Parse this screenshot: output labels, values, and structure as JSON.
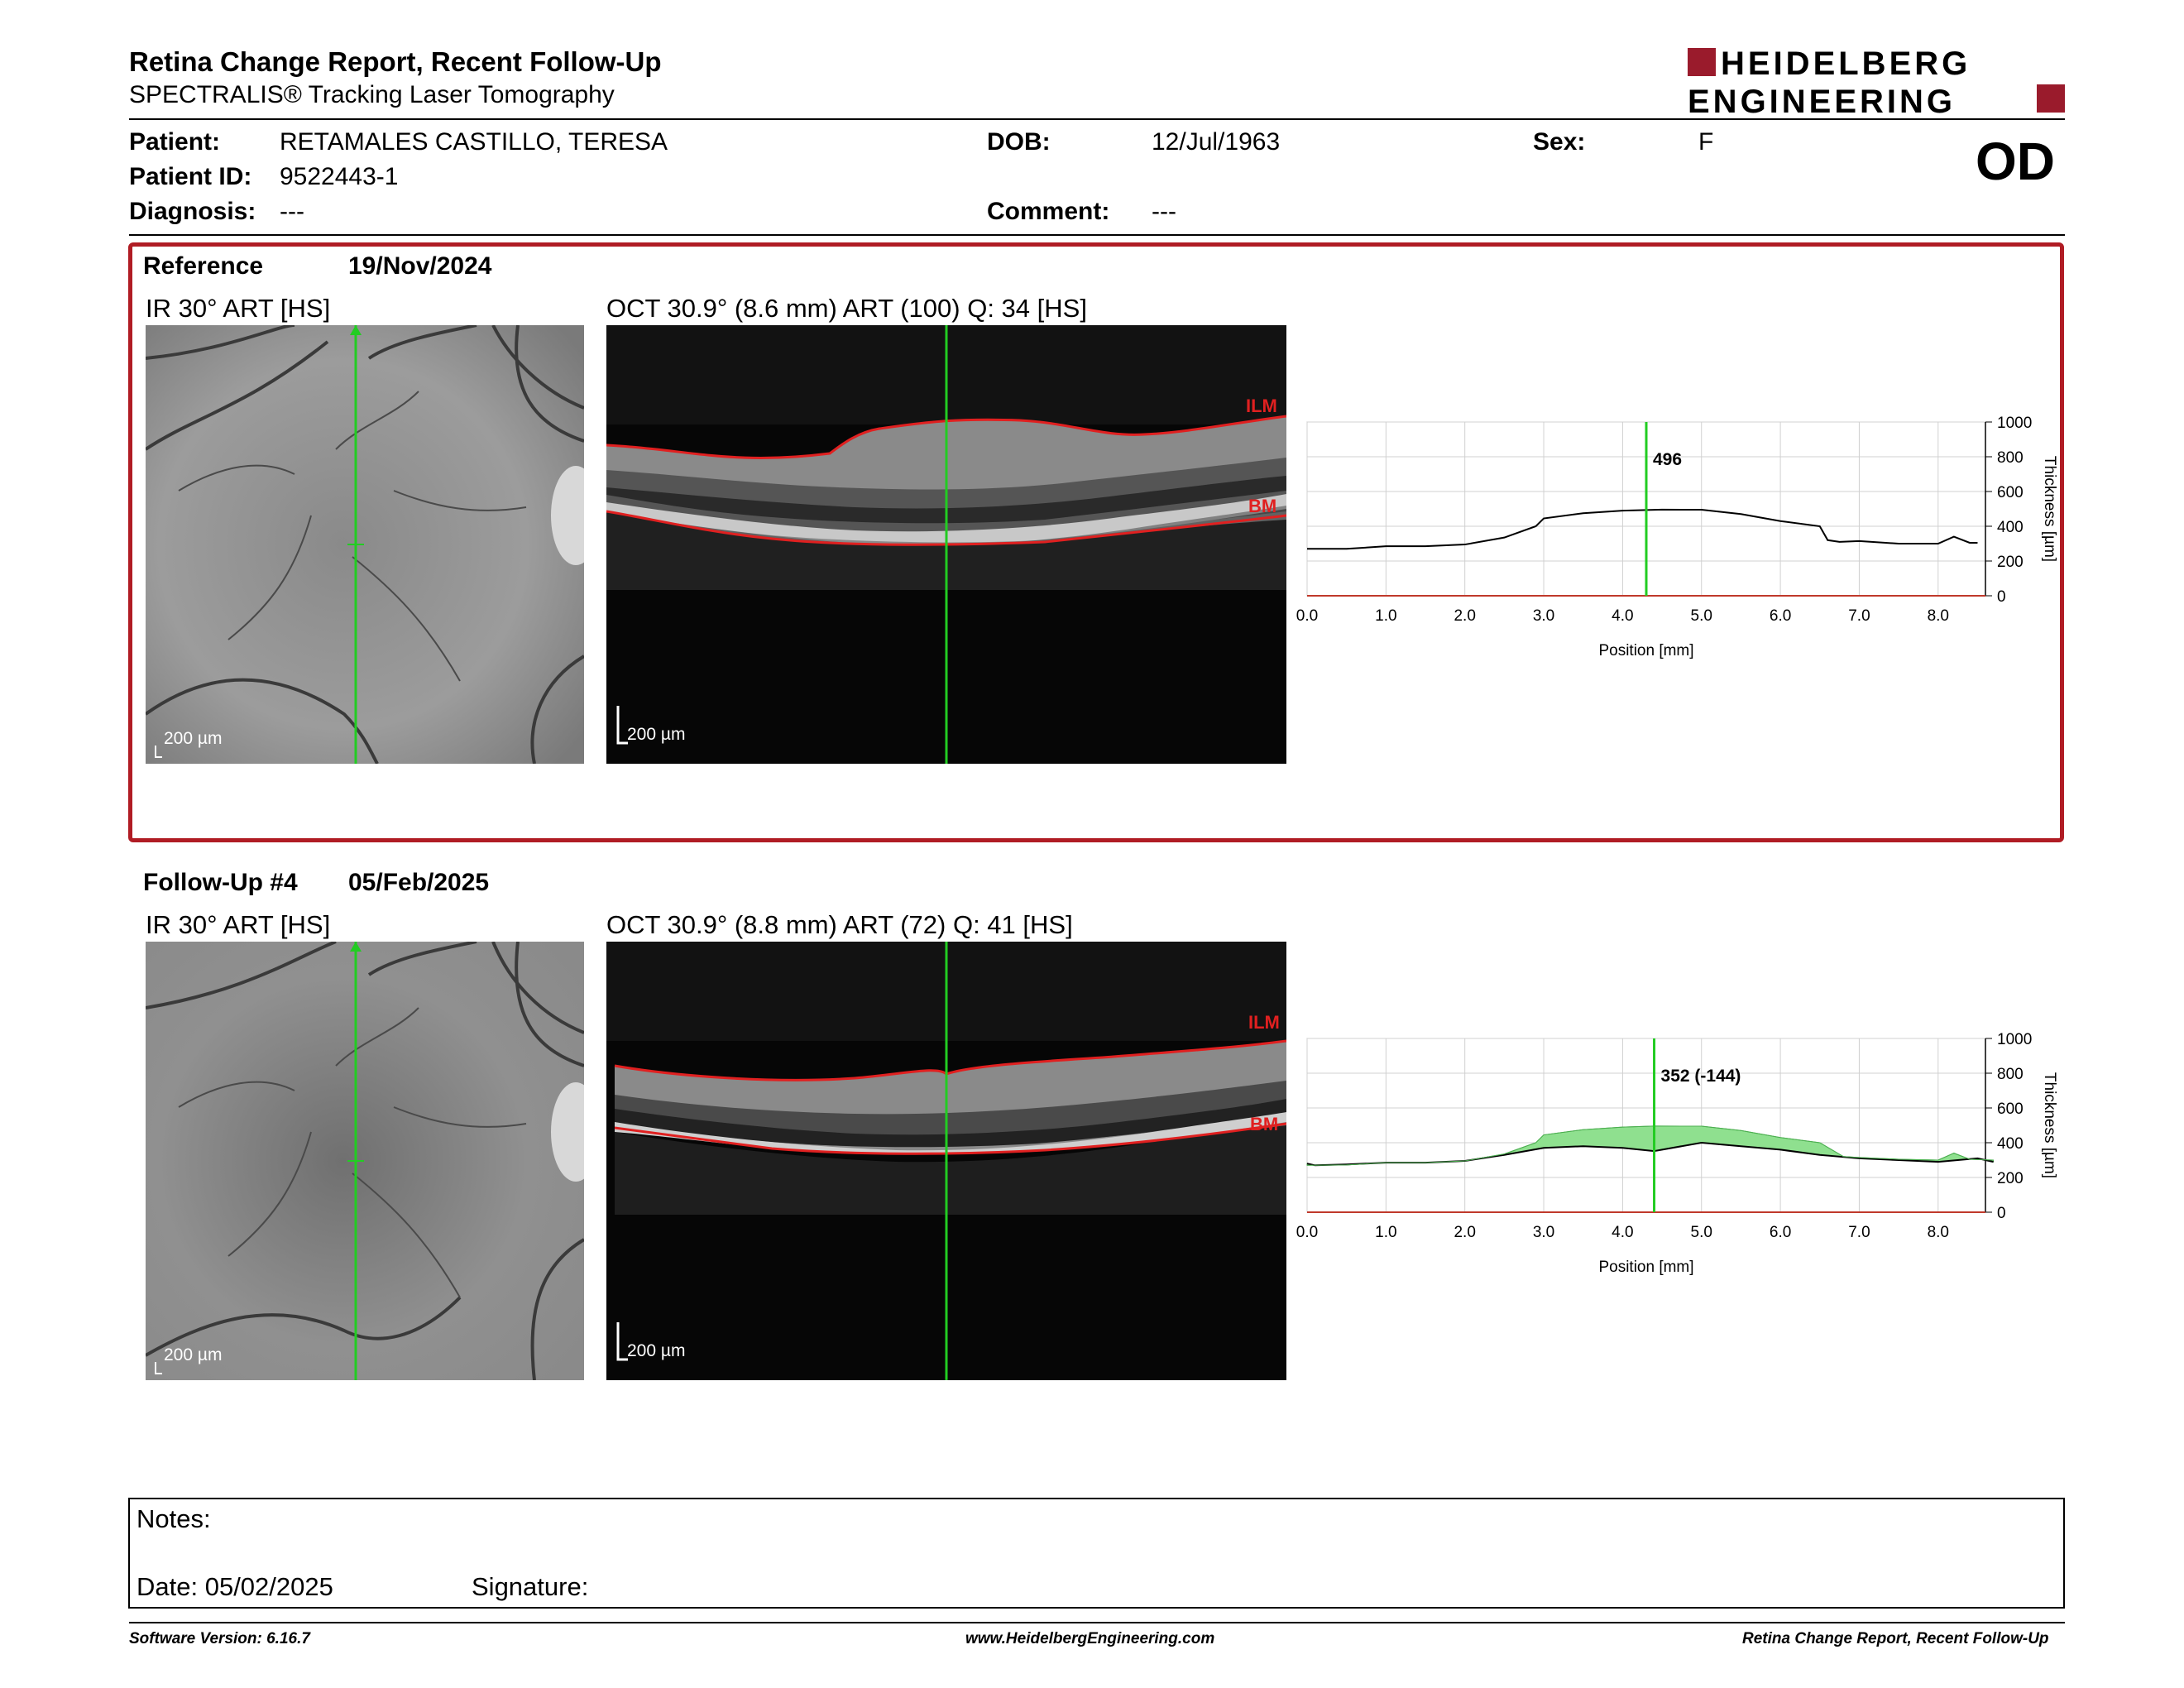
{
  "header": {
    "title": "Retina Change Report, Recent Follow-Up",
    "subtitle": "SPECTRALIS® Tracking Laser Tomography",
    "logo_line1": "HEIDELBERG",
    "logo_line2": "ENGINEERING",
    "brand_color": "#9a1b2c"
  },
  "patient": {
    "patient_label": "Patient:",
    "patient_value": "RETAMALES CASTILLO, TERESA",
    "id_label": "Patient ID:",
    "id_value": "9522443-1",
    "diagnosis_label": "Diagnosis:",
    "diagnosis_value": "---",
    "dob_label": "DOB:",
    "dob_value": "12/Jul/1963",
    "comment_label": "Comment:",
    "comment_value": "---",
    "sex_label": "Sex:",
    "sex_value": "F",
    "eye": "OD"
  },
  "reference": {
    "label": "Reference",
    "date": "19/Nov/2024",
    "ir_caption": "IR 30° ART [HS]",
    "oct_caption": "OCT 30.9° (8.6 mm) ART (100) Q: 34 [HS]",
    "ir_scale": "200 µm",
    "oct_scale": "200 µm",
    "ilm_label": "ILM",
    "bm_label": "BM",
    "panel_border_color": "#b01c24"
  },
  "followup": {
    "label": "Follow-Up #4",
    "date": "05/Feb/2025",
    "ir_caption": "IR 30° ART [HS]",
    "oct_caption": "OCT 30.9° (8.8 mm) ART (72) Q: 41 [HS]",
    "ir_scale": "200 µm",
    "oct_scale": "200 µm",
    "ilm_label": "ILM",
    "bm_label": "BM"
  },
  "chart_data": [
    {
      "type": "line",
      "x_ticks": [
        "0.0",
        "1.0",
        "2.0",
        "3.0",
        "4.0",
        "5.0",
        "6.0",
        "7.0",
        "8.0"
      ],
      "y_ticks": [
        "0",
        "200",
        "400",
        "600",
        "800",
        "1000"
      ],
      "xlabel": "Position [mm]",
      "ylabel": "Thickness [µm]",
      "xlim": [
        0,
        8.6
      ],
      "ylim": [
        0,
        1000
      ],
      "cursor_x": 4.3,
      "cursor_label": "496",
      "series": [
        {
          "x": [
            0,
            0.5,
            1.0,
            1.5,
            2.0,
            2.5,
            2.9,
            3.0,
            3.5,
            4.0,
            4.5,
            5.0,
            5.5,
            6.0,
            6.5,
            6.6,
            6.75,
            7.0,
            7.5,
            8.0,
            8.2,
            8.4,
            8.5
          ],
          "y": [
            270,
            270,
            285,
            285,
            295,
            335,
            400,
            445,
            475,
            490,
            496,
            495,
            470,
            430,
            400,
            320,
            310,
            315,
            300,
            300,
            340,
            305,
            305
          ]
        }
      ],
      "colors": {
        "line": "#000000",
        "cursor": "#22cc22",
        "baseline": "#c0392b"
      }
    },
    {
      "type": "area",
      "x_ticks": [
        "0.0",
        "1.0",
        "2.0",
        "3.0",
        "4.0",
        "5.0",
        "6.0",
        "7.0",
        "8.0"
      ],
      "y_ticks": [
        "0",
        "200",
        "400",
        "600",
        "800",
        "1000"
      ],
      "xlabel": "Position [mm]",
      "ylabel": "Thickness [µm]",
      "xlim": [
        0,
        8.8
      ],
      "ylim": [
        0,
        1000
      ],
      "cursor_x": 4.4,
      "cursor_label": "352 (-144)",
      "series": [
        {
          "x": [
            0,
            0.1,
            0.5,
            1.0,
            1.5,
            2.0,
            2.5,
            3.0,
            3.5,
            4.0,
            4.4,
            5.0,
            5.5,
            6.0,
            6.5,
            7.0,
            7.5,
            8.0,
            8.5,
            8.7
          ],
          "y": [
            280,
            270,
            275,
            285,
            285,
            295,
            330,
            370,
            380,
            370,
            352,
            400,
            380,
            360,
            330,
            310,
            300,
            290,
            310,
            290
          ]
        },
        {
          "x": [
            0,
            0.5,
            1.0,
            1.5,
            2.0,
            2.5,
            2.9,
            3.0,
            3.5,
            4.0,
            4.4,
            5.0,
            5.5,
            6.0,
            6.5,
            6.8,
            7.0,
            7.5,
            8.0,
            8.2,
            8.4,
            8.7
          ],
          "y": [
            270,
            272,
            285,
            285,
            295,
            335,
            400,
            445,
            475,
            490,
            496,
            495,
            470,
            430,
            400,
            320,
            315,
            305,
            300,
            340,
            305,
            300
          ]
        }
      ],
      "colors": {
        "line": "#000000",
        "fill": "#8fe08f",
        "cursor": "#22cc22",
        "baseline": "#c0392b"
      }
    }
  ],
  "notes": {
    "notes_label": "Notes:",
    "date_label": "Date: 05/02/2025",
    "signature_label": "Signature:"
  },
  "footer": {
    "left": "Software Version: 6.16.7",
    "center": "www.HeidelbergEngineering.com",
    "right": "Retina Change Report, Recent Follow-Up"
  }
}
